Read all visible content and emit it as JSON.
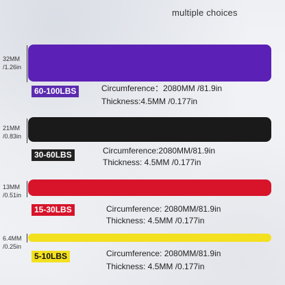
{
  "header": "multiple choices",
  "bands": [
    {
      "width_mm": "32MM",
      "width_in": "/1.26in",
      "color": "#5b21b6",
      "label": "60-100LBS",
      "label_bg": "#5b2bb0",
      "label_color": "#ffffff",
      "circumference": "Circumference：2080MM /81.9in",
      "thickness": "Thickness:4.5MM  /0.177in"
    },
    {
      "width_mm": "21MM",
      "width_in": "/0.83in",
      "color": "#1a1a1a",
      "label": "30-60LBS",
      "label_bg": "#222222",
      "label_color": "#ffffff",
      "circumference": "Circumference:2080MM/81.9in",
      "thickness": "Thickness: 4.5MM /0.177in"
    },
    {
      "width_mm": "13MM",
      "width_in": "/0.51in",
      "color": "#d7142a",
      "label": "15-30LBS",
      "label_bg": "#d7142a",
      "label_color": "#ffffff",
      "circumference": "Circumference: 2080MM/81.9in",
      "thickness": "Thickness: 4.5MM /0.177in"
    },
    {
      "width_mm": "6.4MM",
      "width_in": "/0.25in",
      "color": "#f3e01f",
      "label": "5-10LBS",
      "label_bg": "#f3e01f",
      "label_color": "#111111",
      "circumference": "Circumference: 2080MM/81.9in",
      "thickness": "Thickness: 4.5MM /0.177in"
    }
  ]
}
